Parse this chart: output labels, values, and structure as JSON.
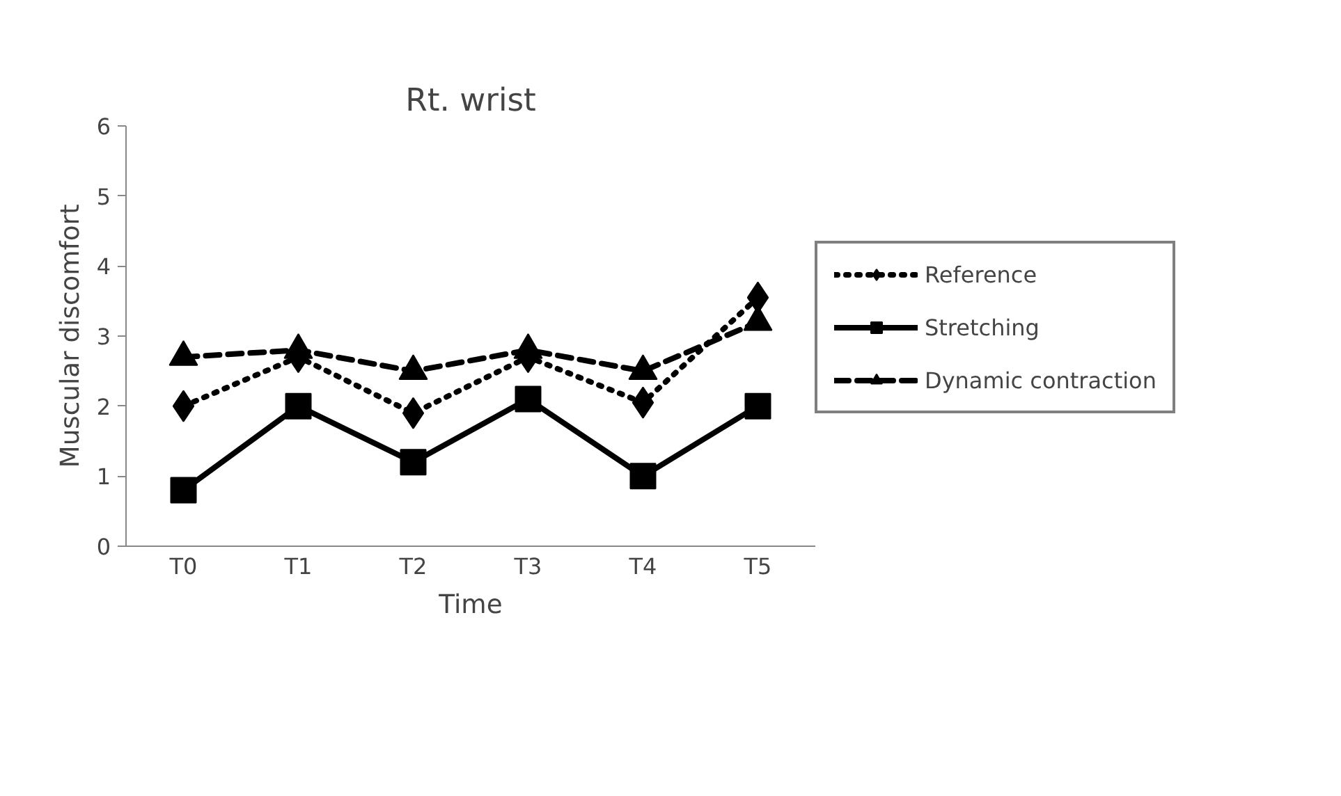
{
  "chart_data": {
    "type": "line",
    "title": "Rt. wrist",
    "xlabel": "Time",
    "ylabel": "Muscular discomfort",
    "categories": [
      "T0",
      "T1",
      "T2",
      "T3",
      "T4",
      "T5"
    ],
    "series": [
      {
        "name": "Reference",
        "color": "#000000",
        "marker": "diamond",
        "line_style": "dotted",
        "values": [
          2.0,
          2.7,
          1.9,
          2.7,
          2.05,
          3.55
        ]
      },
      {
        "name": "Stretching",
        "color": "#000000",
        "marker": "square",
        "line_style": "solid",
        "values": [
          0.8,
          2.0,
          1.2,
          2.1,
          1.0,
          2.0
        ]
      },
      {
        "name": "Dynamic contraction",
        "color": "#000000",
        "marker": "triangle",
        "line_style": "dashed",
        "values": [
          2.7,
          2.8,
          2.5,
          2.8,
          2.5,
          3.2
        ]
      }
    ],
    "ylim": [
      0,
      6
    ],
    "yticks": [
      0,
      1,
      2,
      3,
      4,
      5,
      6
    ],
    "grid": false,
    "legend": "right"
  }
}
